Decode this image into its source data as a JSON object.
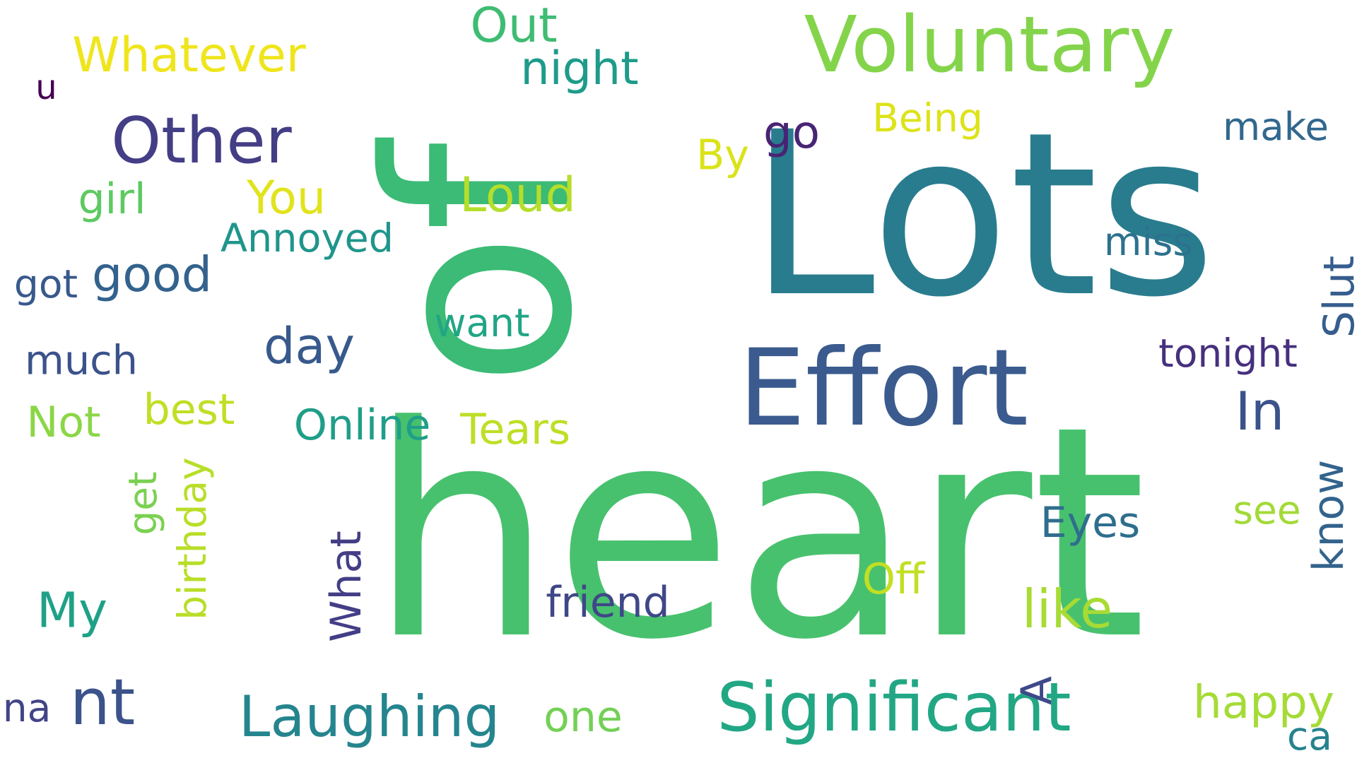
{
  "words": [
    {
      "text": "heart",
      "color": "#48c16e"
    },
    {
      "text": "Lots",
      "color": "#297c8e"
    },
    {
      "text": "of",
      "color": "#3bbb75"
    },
    {
      "text": "Effort",
      "color": "#3b5b8e"
    },
    {
      "text": "Voluntary",
      "color": "#84d44b"
    },
    {
      "text": "Significant",
      "color": "#22a784"
    },
    {
      "text": "Other",
      "color": "#433e85"
    },
    {
      "text": "Laughing",
      "color": "#25858e"
    },
    {
      "text": "nt",
      "color": "#3b528b"
    },
    {
      "text": "Loud",
      "color": "#b5de2b"
    },
    {
      "text": "You",
      "color": "#e1e31c"
    },
    {
      "text": "like",
      "color": "#a8db34"
    },
    {
      "text": "My",
      "color": "#1fa187"
    },
    {
      "text": "good",
      "color": "#33628d"
    },
    {
      "text": "day",
      "color": "#38598c"
    },
    {
      "text": "Whatever",
      "color": "#efe51c"
    },
    {
      "text": "Out",
      "color": "#3fbc73"
    },
    {
      "text": "night",
      "color": "#1e9b8a"
    },
    {
      "text": "Slut",
      "color": "#365d8d"
    },
    {
      "text": "know",
      "color": "#33638d"
    },
    {
      "text": "In",
      "color": "#3b528b"
    },
    {
      "text": "What",
      "color": "#433e85"
    },
    {
      "text": "A",
      "color": "#3e4989"
    },
    {
      "text": "Annoyed",
      "color": "#1f958b"
    },
    {
      "text": "much",
      "color": "#3b528b"
    },
    {
      "text": "best",
      "color": "#c0df25"
    },
    {
      "text": "Tears",
      "color": "#bddf26"
    },
    {
      "text": "Online",
      "color": "#1f9e89"
    },
    {
      "text": "happy",
      "color": "#a5db36"
    },
    {
      "text": "girl",
      "color": "#5ec962"
    },
    {
      "text": "got",
      "color": "#38598c"
    },
    {
      "text": "get",
      "color": "#7ad151"
    },
    {
      "text": "birthday",
      "color": "#b8de29"
    },
    {
      "text": "Being",
      "color": "#dde318"
    },
    {
      "text": "go",
      "color": "#482475"
    },
    {
      "text": "By",
      "color": "#dae319"
    },
    {
      "text": "make",
      "color": "#31688e"
    },
    {
      "text": "miss",
      "color": "#2c728e"
    },
    {
      "text": "want",
      "color": "#21a585"
    },
    {
      "text": "tonight",
      "color": "#46307e"
    },
    {
      "text": "Eyes",
      "color": "#2e6e8e"
    },
    {
      "text": "see",
      "color": "#a2da37"
    },
    {
      "text": "friend",
      "color": "#3f4788"
    },
    {
      "text": "Off",
      "color": "#c2df23"
    },
    {
      "text": "one",
      "color": "#73d056"
    },
    {
      "text": "Not",
      "color": "#8bd646"
    },
    {
      "text": "na",
      "color": "#414487"
    },
    {
      "text": "u",
      "color": "#440154"
    },
    {
      "text": "ca",
      "color": "#26828e"
    }
  ]
}
